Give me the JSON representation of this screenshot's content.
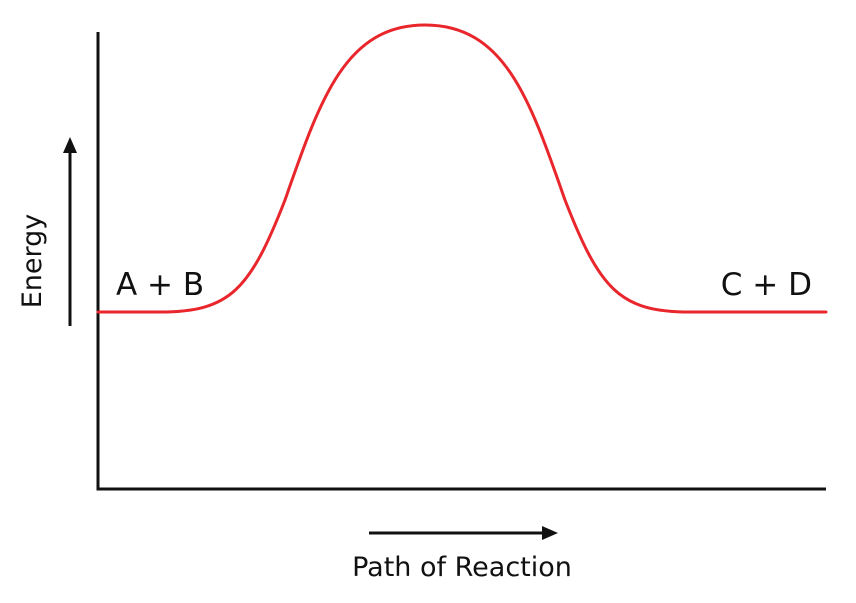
{
  "diagram": {
    "y_axis_label": "Energy",
    "x_axis_label": "Path of Reaction",
    "reactants_label": "A + B",
    "products_label": "C + D"
  },
  "colors": {
    "curve": "#e8262b",
    "axes": "#111111"
  }
}
